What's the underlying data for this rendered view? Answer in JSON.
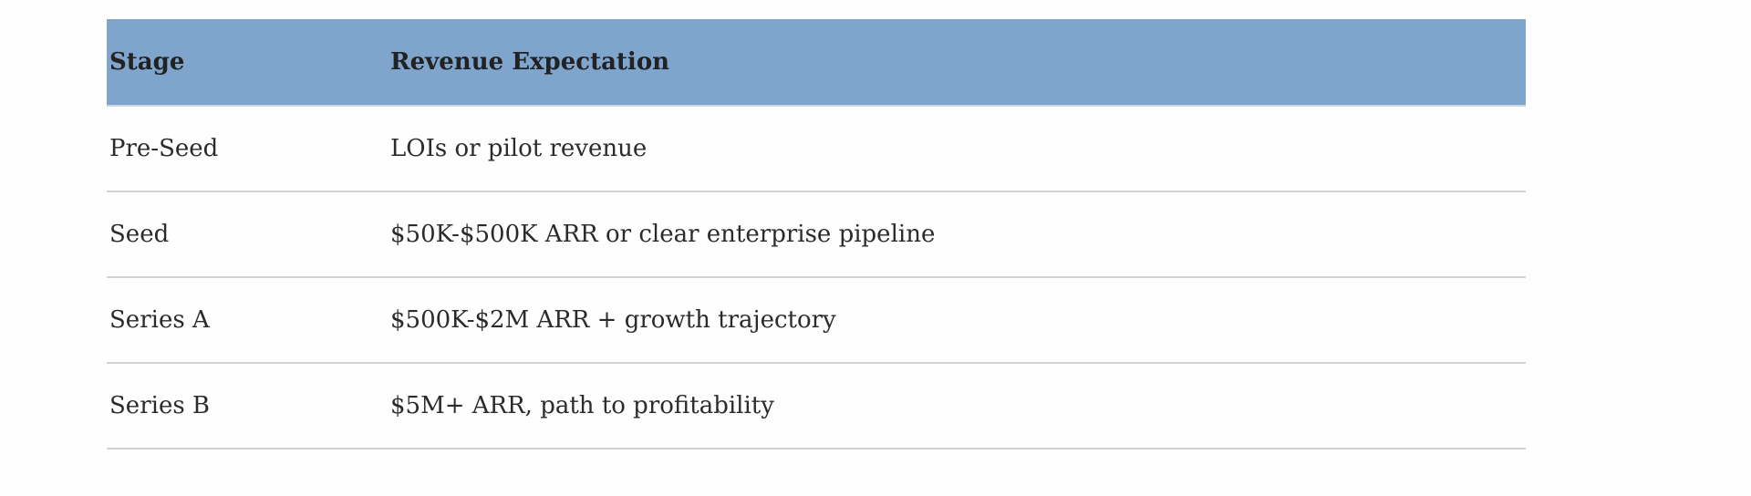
{
  "table": {
    "headers": [
      "Stage",
      "Revenue Expectation"
    ],
    "rows": [
      [
        "Pre-Seed",
        "LOIs or pilot revenue"
      ],
      [
        "Seed",
        "$50K-$500K ARR or clear enterprise pipeline"
      ],
      [
        "Series A",
        "$500K-$2M ARR + growth trajectory"
      ],
      [
        "Series B",
        "$5M+ ARR, path to profitability"
      ]
    ],
    "header_color": "#7fa5cd"
  }
}
